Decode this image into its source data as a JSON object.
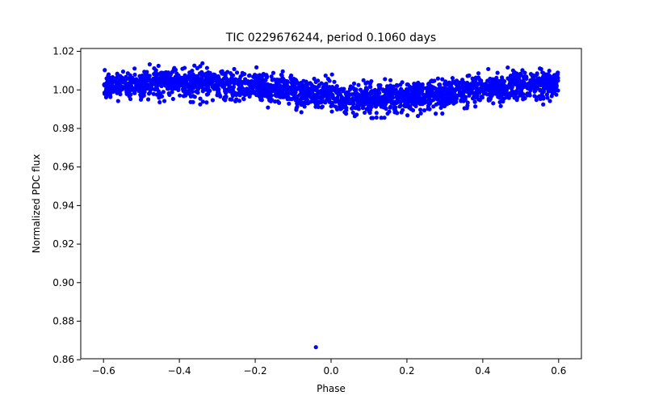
{
  "chart_data": {
    "type": "scatter",
    "title": "TIC 0229676244, period 0.1060 days",
    "xlabel": "Phase",
    "ylabel": "Normalized PDC flux",
    "xlim": [
      -0.66,
      0.66
    ],
    "ylim": [
      0.8605,
      1.0215
    ],
    "grid": false,
    "point_color": "#0000ff",
    "x_ticks": [
      -0.6,
      -0.4,
      -0.2,
      0.0,
      0.2,
      0.4,
      0.6
    ],
    "x_tick_labels": [
      "−0.6",
      "−0.4",
      "−0.2",
      "0.0",
      "0.2",
      "0.4",
      "0.6"
    ],
    "y_ticks": [
      0.86,
      0.88,
      0.9,
      0.92,
      0.94,
      0.96,
      0.98,
      1.0,
      1.02
    ],
    "y_tick_labels": [
      "0.86",
      "0.88",
      "0.90",
      "0.92",
      "0.94",
      "0.96",
      "0.98",
      "1.00",
      "1.02"
    ],
    "band": {
      "description_phase": [
        -0.6,
        -0.5,
        -0.4,
        -0.3,
        -0.2,
        -0.1,
        0.0,
        0.1,
        0.2,
        0.3,
        0.4,
        0.5,
        0.6
      ],
      "center_flux": [
        1.0015,
        1.003,
        1.004,
        1.0035,
        1.002,
        0.999,
        0.997,
        0.9955,
        0.996,
        0.998,
        1.0005,
        1.002,
        1.003
      ],
      "half_width": 0.0075,
      "points": 2400
    },
    "outliers": [
      {
        "x": -0.04,
        "y": 0.8665
      },
      {
        "x": -0.345,
        "y": 0.9925
      },
      {
        "x": 0.0025,
        "y": 1.008
      }
    ]
  }
}
